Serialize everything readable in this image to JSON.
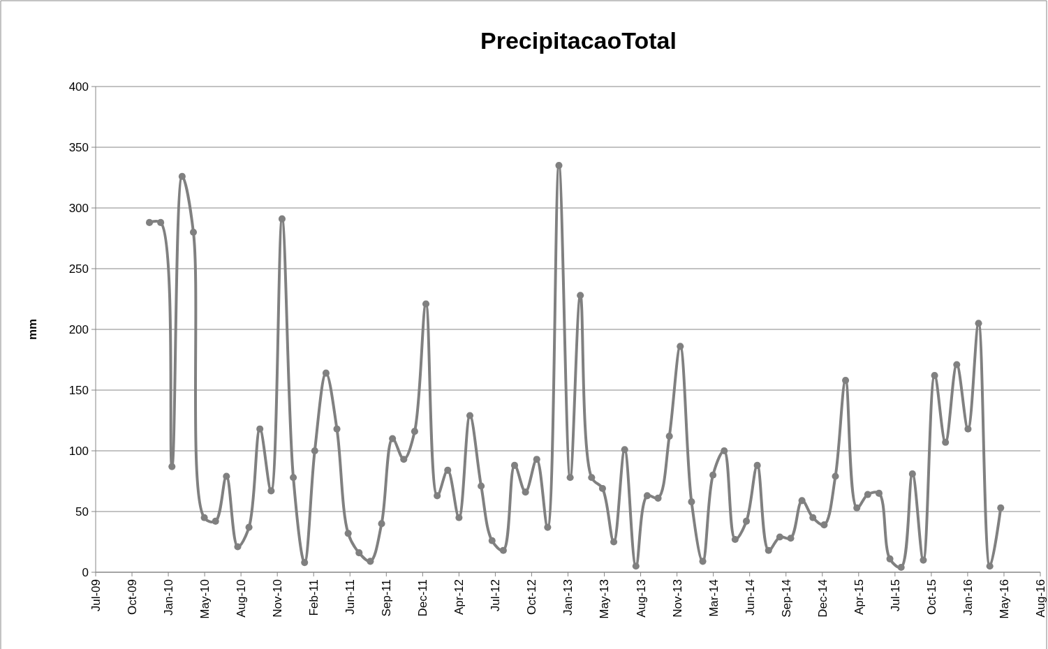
{
  "chart_data": {
    "type": "line",
    "title": "PrecipitacaoTotal",
    "ylabel": "mm",
    "x": [
      "2009-12-01",
      "2010-01-01",
      "2010-02-01",
      "2010-03-01",
      "2010-04-01",
      "2010-05-01",
      "2010-06-01",
      "2010-07-01",
      "2010-08-01",
      "2010-09-01",
      "2010-10-01",
      "2010-11-01",
      "2010-12-01",
      "2011-01-01",
      "2011-02-01",
      "2011-03-01",
      "2011-04-01",
      "2011-05-01",
      "2011-06-01",
      "2011-07-01",
      "2011-08-01",
      "2011-09-01",
      "2011-10-01",
      "2011-11-01",
      "2011-12-01",
      "2012-01-01",
      "2012-02-01",
      "2012-03-01",
      "2012-04-01",
      "2012-05-01",
      "2012-06-01",
      "2012-07-01",
      "2012-08-01",
      "2012-09-01",
      "2012-10-01",
      "2012-11-01",
      "2012-12-01",
      "2013-01-01",
      "2013-02-01",
      "2013-03-01",
      "2013-04-01",
      "2013-05-01",
      "2013-06-01",
      "2013-07-01",
      "2013-08-01",
      "2013-09-01",
      "2013-10-01",
      "2013-11-01",
      "2013-12-01",
      "2014-01-01",
      "2014-02-01",
      "2014-03-01",
      "2014-04-01",
      "2014-05-01",
      "2014-06-01",
      "2014-07-01",
      "2014-08-01",
      "2014-09-01",
      "2014-10-01",
      "2014-11-01",
      "2014-12-01",
      "2015-01-01",
      "2015-02-01",
      "2015-03-01",
      "2015-04-01",
      "2015-05-01",
      "2015-06-01",
      "2015-07-01",
      "2015-08-01",
      "2015-09-01",
      "2015-10-01",
      "2015-11-01",
      "2015-12-01",
      "2016-01-01",
      "2016-02-01",
      "2016-03-01",
      "2016-04-01",
      "2016-05-01"
    ],
    "series": [
      {
        "color": "#808080",
        "values": [
          288,
          288,
          87,
          326,
          280,
          45,
          42,
          79,
          21,
          37,
          118,
          67,
          291,
          78,
          8,
          100,
          164,
          118,
          32,
          16,
          9,
          40,
          110,
          93,
          116,
          221,
          63,
          84,
          45,
          129,
          71,
          26,
          18,
          88,
          66,
          93,
          37,
          335,
          78,
          228,
          78,
          69,
          25,
          101,
          5,
          63,
          61,
          112,
          186,
          58,
          9,
          80,
          100,
          27,
          42,
          88,
          18,
          29,
          28,
          59,
          45,
          39,
          79,
          158,
          53,
          64,
          65,
          11,
          4,
          81,
          10,
          162,
          107,
          171,
          118,
          205,
          5,
          53
        ]
      }
    ],
    "xlim": [
      "2009-07-06",
      "2016-08-18"
    ],
    "xticks": [
      {
        "value": "2009-07-06",
        "label": "Jul-09"
      },
      {
        "value": "2009-10-14",
        "label": "Oct-09"
      },
      {
        "value": "2010-01-22",
        "label": "Jan-10"
      },
      {
        "value": "2010-05-02",
        "label": "May-10"
      },
      {
        "value": "2010-08-10",
        "label": "Aug-10"
      },
      {
        "value": "2010-11-18",
        "label": "Nov-10"
      },
      {
        "value": "2011-02-26",
        "label": "Feb-11"
      },
      {
        "value": "2011-06-06",
        "label": "Jun-11"
      },
      {
        "value": "2011-09-14",
        "label": "Sep-11"
      },
      {
        "value": "2011-12-23",
        "label": "Dec-11"
      },
      {
        "value": "2012-04-01",
        "label": "Apr-12"
      },
      {
        "value": "2012-07-10",
        "label": "Jul-12"
      },
      {
        "value": "2012-10-18",
        "label": "Oct-12"
      },
      {
        "value": "2013-01-26",
        "label": "Jan-13"
      },
      {
        "value": "2013-05-06",
        "label": "May-13"
      },
      {
        "value": "2013-08-14",
        "label": "Aug-13"
      },
      {
        "value": "2013-11-22",
        "label": "Nov-13"
      },
      {
        "value": "2014-03-02",
        "label": "Mar-14"
      },
      {
        "value": "2014-06-10",
        "label": "Jun-14"
      },
      {
        "value": "2014-09-18",
        "label": "Sep-14"
      },
      {
        "value": "2014-12-27",
        "label": "Dec-14"
      },
      {
        "value": "2015-04-06",
        "label": "Apr-15"
      },
      {
        "value": "2015-07-15",
        "label": "Jul-15"
      },
      {
        "value": "2015-10-23",
        "label": "Oct-15"
      },
      {
        "value": "2016-01-31",
        "label": "Jan-16"
      },
      {
        "value": "2016-05-10",
        "label": "May-16"
      },
      {
        "value": "2016-08-18",
        "label": "Aug-16"
      }
    ],
    "ylim": [
      0,
      400
    ],
    "yticks": [
      0,
      50,
      100,
      150,
      200,
      250,
      300,
      350,
      400
    ],
    "grid": "y",
    "marker": "circle",
    "line_style": "solid"
  }
}
